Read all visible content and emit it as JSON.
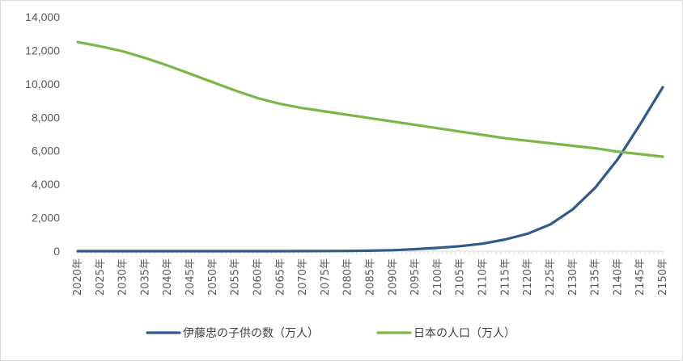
{
  "chart_data": {
    "type": "line",
    "title": "",
    "xlabel": "",
    "ylabel": "",
    "ylim": [
      0,
      14000
    ],
    "yticks": [
      0,
      2000,
      4000,
      6000,
      8000,
      10000,
      12000,
      14000
    ],
    "ytick_labels": [
      "0",
      "2,000",
      "4,000",
      "6,000",
      "8,000",
      "10,000",
      "12,000",
      "14,000"
    ],
    "x_labels": [
      "2020年",
      "2025年",
      "2030年",
      "2035年",
      "2040年",
      "2045年",
      "2050年",
      "2055年",
      "2060年",
      "2065年",
      "2070年",
      "2075年",
      "2080年",
      "2085年",
      "2090年",
      "2095年",
      "2100年",
      "2105年",
      "2110年",
      "2115年",
      "2120年",
      "2125年",
      "2130年",
      "2135年",
      "2140年",
      "2145年",
      "2150年"
    ],
    "x": [
      2020,
      2025,
      2030,
      2035,
      2040,
      2045,
      2050,
      2055,
      2060,
      2065,
      2070,
      2075,
      2080,
      2085,
      2090,
      2095,
      2100,
      2105,
      2110,
      2115,
      2120,
      2125,
      2130,
      2135,
      2140,
      2145,
      2150
    ],
    "grid": false,
    "legend": "bottom",
    "series": [
      {
        "name": "伊藤忠の子供の数（万人）",
        "color": "#2e5b8a",
        "values": [
          0,
          0,
          0,
          0,
          0,
          0,
          0,
          0,
          0,
          0,
          5,
          10,
          15,
          30,
          60,
          120,
          200,
          300,
          450,
          700,
          1050,
          1600,
          2500,
          3800,
          5500,
          7600,
          9800
        ]
      },
      {
        "name": "日本の人口（万人）",
        "color": "#7ab648",
        "values": [
          12500,
          12250,
          11950,
          11550,
          11100,
          10600,
          10100,
          9600,
          9150,
          8800,
          8550,
          8350,
          8150,
          7950,
          7750,
          7550,
          7350,
          7150,
          6950,
          6750,
          6600,
          6450,
          6300,
          6150,
          5950,
          5800,
          5650
        ]
      }
    ]
  }
}
